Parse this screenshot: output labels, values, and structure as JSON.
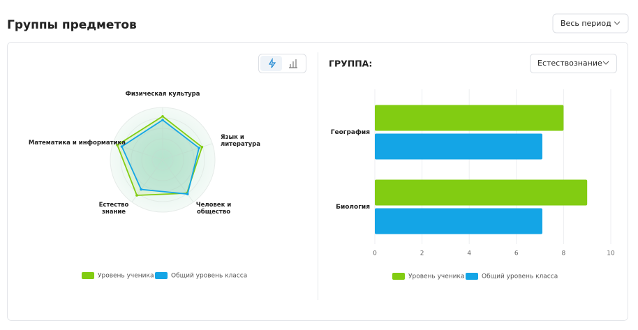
{
  "header": {
    "title": "Группы предметов",
    "period": "Весь период"
  },
  "panel": {
    "group_label": "ГРУППА:",
    "group_select": "Естествознание"
  },
  "chart_data": [
    {
      "type": "radar",
      "categories": [
        "Физическая культура",
        "Язык и литература",
        "Человек и общество",
        "Естество знание",
        "Математика и информатика"
      ],
      "rlim": [
        0,
        10
      ],
      "series": [
        {
          "name": "Уровень ученика",
          "color": "#82cc12",
          "values": [
            8.3,
            7.9,
            7.9,
            8.4,
            9.1
          ]
        },
        {
          "name": "Общий уровень класса",
          "color": "#14a5e6",
          "values": [
            7.6,
            7.3,
            8.1,
            7.0,
            8.2
          ]
        }
      ]
    },
    {
      "type": "bar",
      "orientation": "horizontal",
      "categories": [
        "География",
        "Биология"
      ],
      "xlim": [
        0,
        10
      ],
      "xticks": [
        0,
        2,
        4,
        6,
        8,
        10
      ],
      "grid": true,
      "series": [
        {
          "name": "Уровень ученика",
          "color": "#82cc12",
          "values": [
            8,
            9
          ]
        },
        {
          "name": "Общий уровень класса",
          "color": "#14a5e6",
          "values": [
            7.1,
            7.1
          ]
        }
      ]
    }
  ]
}
